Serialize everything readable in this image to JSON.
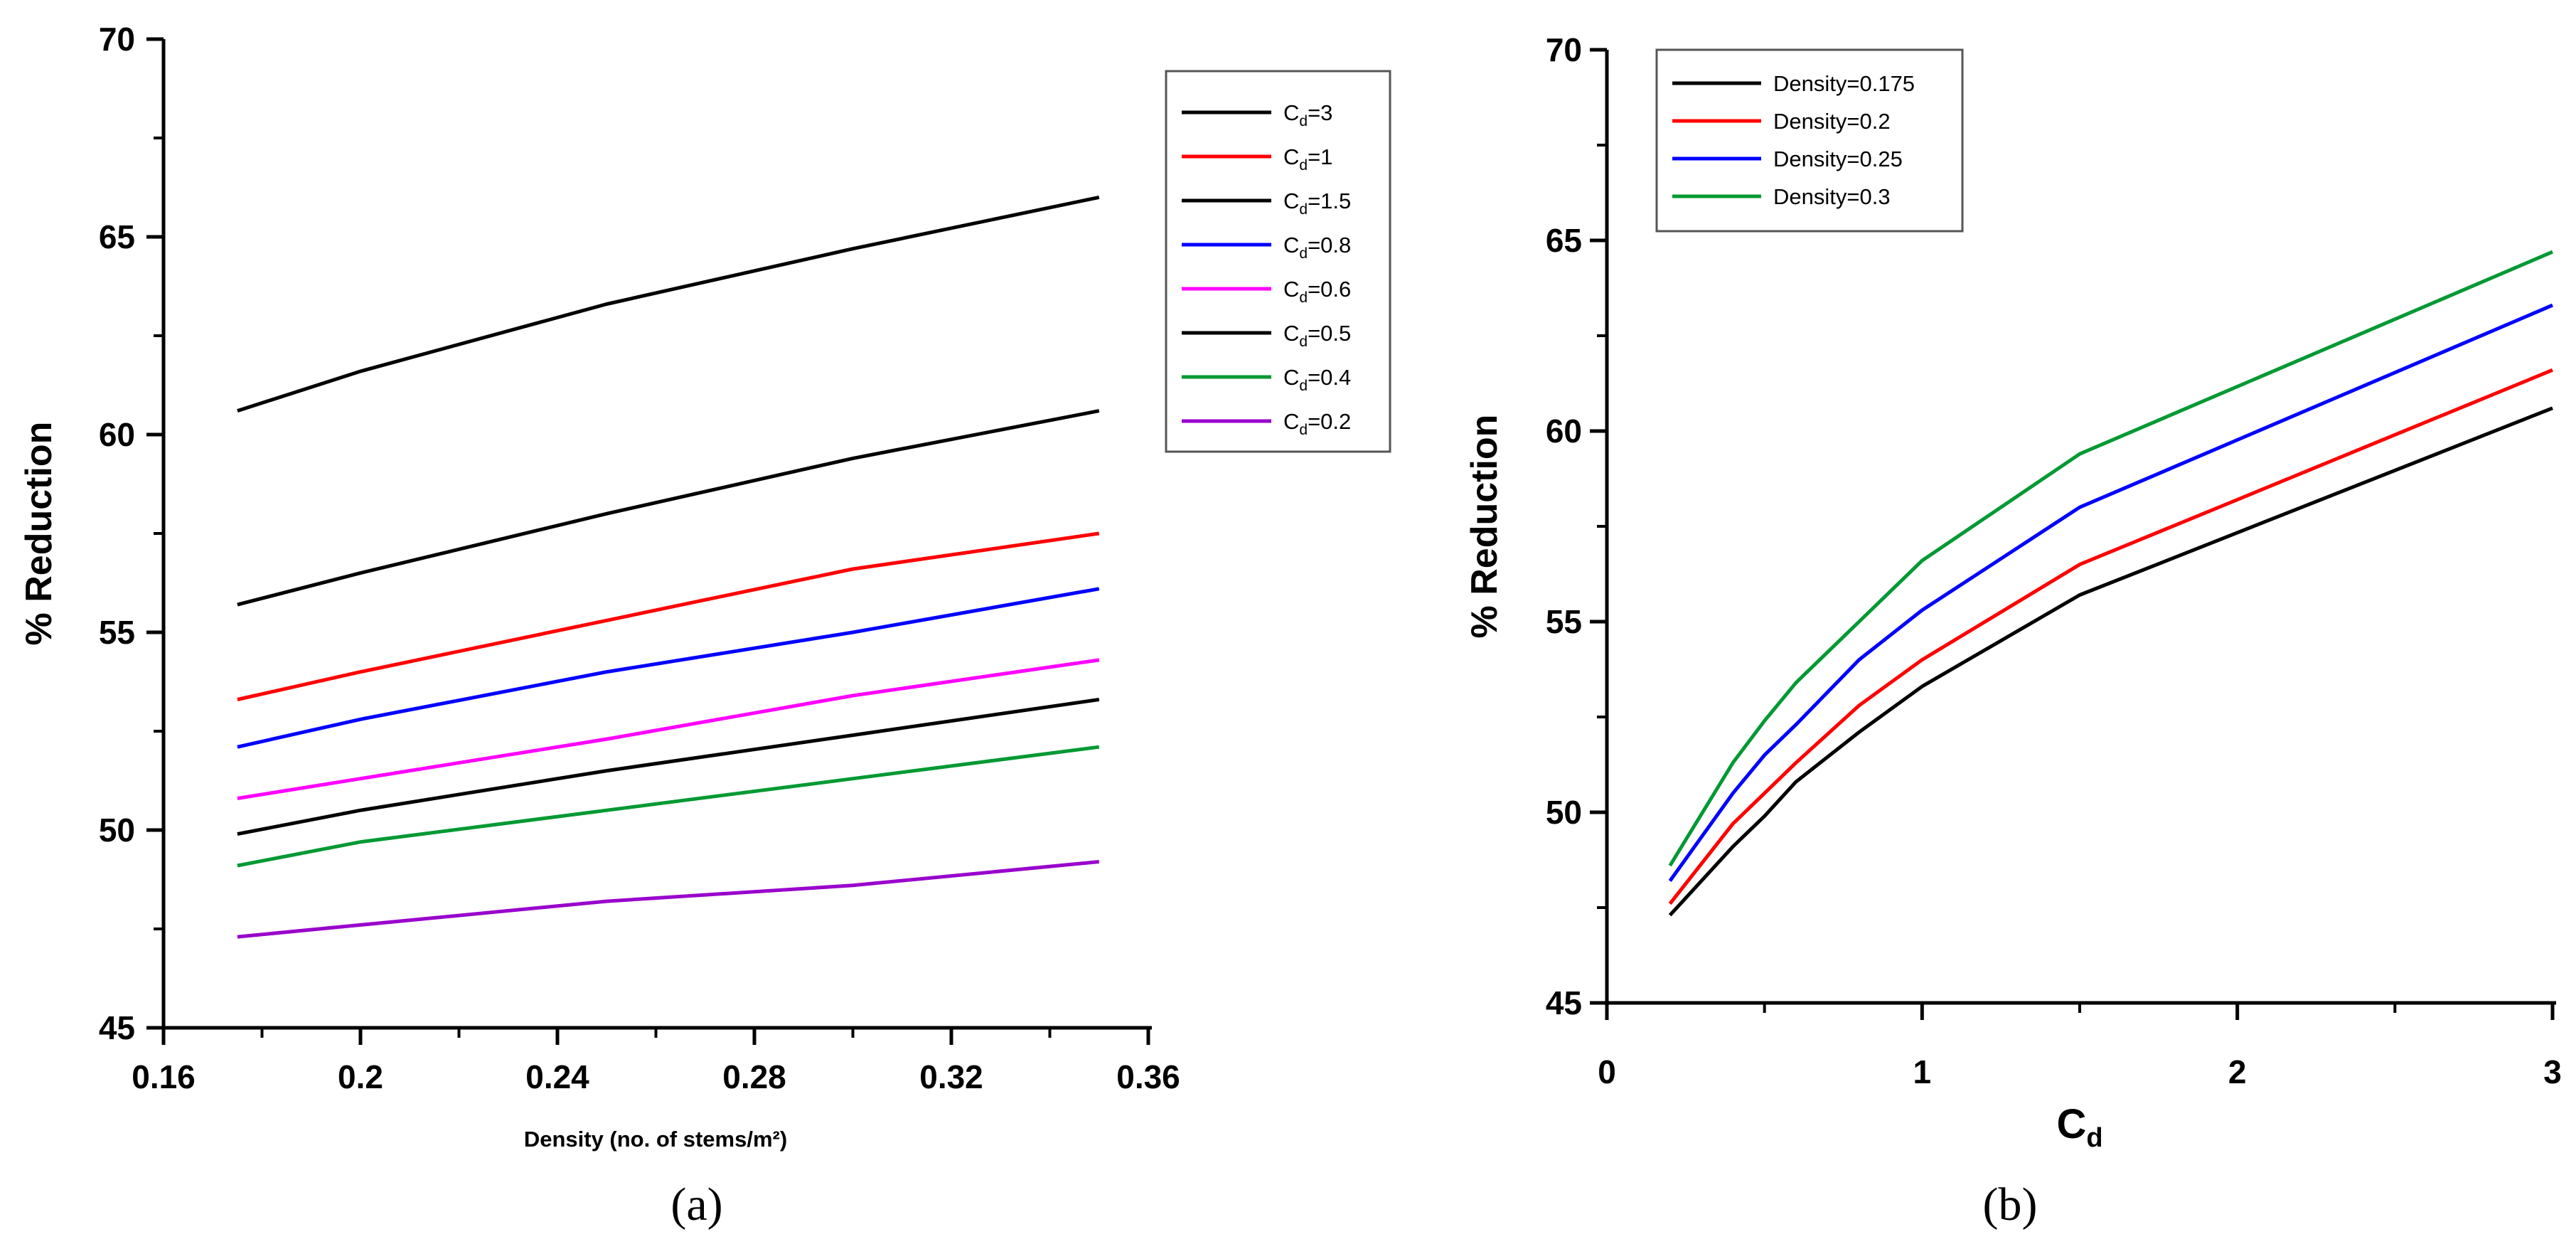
{
  "chart_data": [
    {
      "type": "line",
      "panel_label": "(a)",
      "xlabel": "Density (no. of stems/m²)",
      "ylabel": "% Reduction",
      "xlim": [
        0.16,
        0.36
      ],
      "ylim": [
        45,
        70
      ],
      "xticks": [
        "0.16",
        "0.2",
        "0.24",
        "0.28",
        "0.32",
        "0.36"
      ],
      "yticks": [
        "45",
        "50",
        "55",
        "60",
        "65",
        "70"
      ],
      "x": [
        0.175,
        0.2,
        0.25,
        0.3,
        0.35
      ],
      "legend_placement": "top-right",
      "series": [
        {
          "name": "Cd=3",
          "name_main": "C",
          "name_sub": "d",
          "name_rest": "=3",
          "color": "#000000",
          "values": [
            60.6,
            61.6,
            63.3,
            64.7,
            66.0
          ]
        },
        {
          "name": "Cd=1",
          "name_main": "C",
          "name_sub": "d",
          "name_rest": "=1",
          "color": "#ff0000",
          "values": [
            53.3,
            54.0,
            55.3,
            56.6,
            57.5
          ]
        },
        {
          "name": "Cd=1.5",
          "name_main": "C",
          "name_sub": "d",
          "name_rest": "=1.5",
          "color": "#000000",
          "values": [
            55.7,
            56.5,
            58.0,
            59.4,
            60.6
          ]
        },
        {
          "name": "Cd=0.8",
          "name_main": "C",
          "name_sub": "d",
          "name_rest": "=0.8",
          "color": "#0000ff",
          "values": [
            52.1,
            52.8,
            54.0,
            55.0,
            56.1
          ]
        },
        {
          "name": "Cd=0.6",
          "name_main": "C",
          "name_sub": "d",
          "name_rest": "=0.6",
          "color": "#ff00ff",
          "values": [
            50.8,
            51.3,
            52.3,
            53.4,
            54.3
          ]
        },
        {
          "name": "Cd=0.5",
          "name_main": "C",
          "name_sub": "d",
          "name_rest": "=0.5",
          "color": "#000000",
          "values": [
            49.9,
            50.5,
            51.5,
            52.4,
            53.3
          ]
        },
        {
          "name": "Cd=0.4",
          "name_main": "C",
          "name_sub": "d",
          "name_rest": "=0.4",
          "color": "#009933",
          "values": [
            49.1,
            49.7,
            50.5,
            51.3,
            52.1
          ]
        },
        {
          "name": "Cd=0.2",
          "name_main": "C",
          "name_sub": "d",
          "name_rest": "=0.2",
          "color": "#9900cc",
          "values": [
            47.3,
            47.6,
            48.2,
            48.6,
            49.2
          ]
        }
      ]
    },
    {
      "type": "line",
      "panel_label": "(b)",
      "xlabel": "Cd",
      "xlabel_main": "C",
      "xlabel_sub": "d",
      "ylabel": "% Reduction",
      "xlim": [
        0,
        3
      ],
      "ylim": [
        45,
        70
      ],
      "xticks": [
        "0",
        "1",
        "2",
        "3"
      ],
      "yticks": [
        "45",
        "50",
        "55",
        "60",
        "65",
        "70"
      ],
      "x": [
        0.2,
        0.4,
        0.5,
        0.6,
        0.8,
        1.0,
        1.5,
        3.0
      ],
      "legend_placement": "top-left",
      "series": [
        {
          "name": "Density=0.175",
          "color": "#000000",
          "values": [
            47.3,
            49.1,
            49.9,
            50.8,
            52.1,
            53.3,
            55.7,
            60.6
          ]
        },
        {
          "name": "Density=0.2",
          "color": "#ff0000",
          "values": [
            47.6,
            49.7,
            50.5,
            51.3,
            52.8,
            54.0,
            56.5,
            61.6
          ]
        },
        {
          "name": "Density=0.25",
          "color": "#0000ff",
          "values": [
            48.2,
            50.5,
            51.5,
            52.3,
            54.0,
            55.3,
            58.0,
            63.3
          ]
        },
        {
          "name": "Density=0.3",
          "color": "#009933",
          "values": [
            48.6,
            51.3,
            52.4,
            53.4,
            55.0,
            56.6,
            59.4,
            64.7
          ]
        }
      ]
    }
  ]
}
